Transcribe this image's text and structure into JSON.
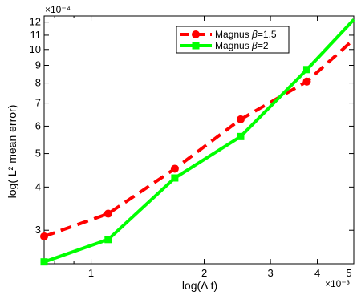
{
  "chart_data": {
    "type": "line",
    "xlabel": "log(Δ t)",
    "ylabel": "log( L² mean error)",
    "x_multiplier": "×10⁻³",
    "y_multiplier": "×10⁻⁴",
    "x_scale": "log",
    "y_scale": "log",
    "xlim": [
      0.00075,
      0.005
    ],
    "ylim": [
      0.00024,
      0.00125
    ],
    "x_ticks": [
      {
        "value": 0.001,
        "label": "1"
      },
      {
        "value": 0.002,
        "label": "2"
      },
      {
        "value": 0.003,
        "label": "3"
      },
      {
        "value": 0.004,
        "label": "4"
      },
      {
        "value": 0.005,
        "label": "5"
      }
    ],
    "y_ticks": [
      {
        "value": 0.0003,
        "label": "3"
      },
      {
        "value": 0.0004,
        "label": "4"
      },
      {
        "value": 0.0005,
        "label": "5"
      },
      {
        "value": 0.0006,
        "label": "6"
      },
      {
        "value": 0.0007,
        "label": "7"
      },
      {
        "value": 0.0008,
        "label": "8"
      },
      {
        "value": 0.0009,
        "label": "9"
      },
      {
        "value": 0.001,
        "label": "10"
      },
      {
        "value": 0.0011,
        "label": "11"
      },
      {
        "value": 0.0012,
        "label": "12"
      }
    ],
    "grid": false,
    "legend_position": "top-center",
    "series": [
      {
        "name": "Magnus β=1.5",
        "name_prefix": "Magnus ",
        "name_symbol": "β",
        "name_suffix": "=1.5",
        "color": "#ff0000",
        "line_style": "dashed",
        "marker": "circle",
        "x": [
          0.00075,
          0.00111,
          0.00167,
          0.0025,
          0.00375,
          0.005
        ],
        "y": [
          0.000288,
          0.000335,
          0.000452,
          0.000628,
          0.000808,
          0.00107
        ]
      },
      {
        "name": "Magnus β=2",
        "name_prefix": "Magnus ",
        "name_symbol": "β",
        "name_suffix": "=2",
        "color": "#00ff00",
        "line_style": "solid",
        "marker": "square",
        "x": [
          0.00075,
          0.00111,
          0.00167,
          0.0025,
          0.00375,
          0.005
        ],
        "y": [
          0.000243,
          0.000282,
          0.000425,
          0.00056,
          0.000875,
          0.00122
        ]
      }
    ]
  }
}
